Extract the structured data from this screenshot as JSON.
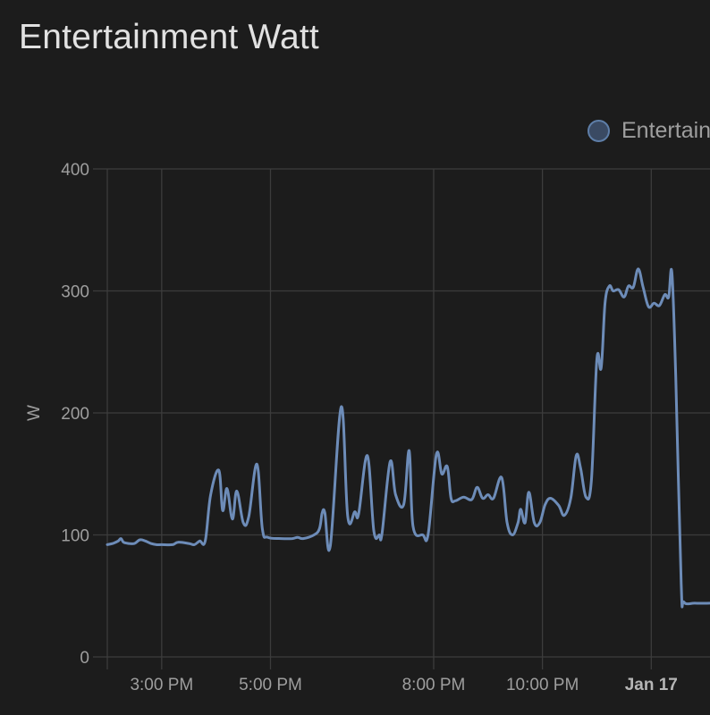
{
  "card": {
    "title": "Entertainment Watt"
  },
  "chart_data": {
    "type": "line",
    "title": "Entertainment Watt",
    "ylabel": "W",
    "ylim": [
      0,
      400
    ],
    "yticks": [
      0,
      100,
      200,
      300,
      400
    ],
    "xlim_hours": [
      14.0,
      25.08
    ],
    "xticks": [
      {
        "label": "3:00 PM",
        "hour": 15,
        "bold": false
      },
      {
        "label": "5:00 PM",
        "hour": 17,
        "bold": false
      },
      {
        "label": "8:00 PM",
        "hour": 20,
        "bold": false
      },
      {
        "label": "10:00 PM",
        "hour": 22,
        "bold": false
      },
      {
        "label": "Jan 17",
        "hour": 24,
        "bold": true
      }
    ],
    "legend_position": "top-right",
    "grid": true,
    "series": [
      {
        "name": "Entertain",
        "color": "#6d8cb8",
        "points": [
          [
            14.0,
            92
          ],
          [
            14.1,
            93
          ],
          [
            14.2,
            95
          ],
          [
            14.25,
            97
          ],
          [
            14.3,
            94
          ],
          [
            14.4,
            93
          ],
          [
            14.5,
            93
          ],
          [
            14.6,
            96
          ],
          [
            14.7,
            95
          ],
          [
            14.8,
            93
          ],
          [
            14.9,
            92
          ],
          [
            15.0,
            92
          ],
          [
            15.2,
            92
          ],
          [
            15.3,
            94
          ],
          [
            15.5,
            93
          ],
          [
            15.6,
            92
          ],
          [
            15.7,
            95
          ],
          [
            15.8,
            95
          ],
          [
            15.9,
            133
          ],
          [
            16.05,
            153
          ],
          [
            16.12,
            120
          ],
          [
            16.2,
            138
          ],
          [
            16.3,
            113
          ],
          [
            16.38,
            136
          ],
          [
            16.5,
            110
          ],
          [
            16.6,
            115
          ],
          [
            16.75,
            158
          ],
          [
            16.85,
            105
          ],
          [
            16.95,
            98
          ],
          [
            17.2,
            97
          ],
          [
            17.4,
            97
          ],
          [
            17.5,
            98
          ],
          [
            17.6,
            97
          ],
          [
            17.8,
            100
          ],
          [
            17.9,
            105
          ],
          [
            17.95,
            118
          ],
          [
            18.0,
            118
          ],
          [
            18.1,
            91
          ],
          [
            18.3,
            205
          ],
          [
            18.42,
            115
          ],
          [
            18.55,
            119
          ],
          [
            18.62,
            117
          ],
          [
            18.78,
            165
          ],
          [
            18.9,
            103
          ],
          [
            19.0,
            100
          ],
          [
            19.05,
            101
          ],
          [
            19.2,
            160
          ],
          [
            19.3,
            133
          ],
          [
            19.45,
            125
          ],
          [
            19.55,
            169
          ],
          [
            19.62,
            107
          ],
          [
            19.8,
            100
          ],
          [
            19.9,
            101
          ],
          [
            20.05,
            166
          ],
          [
            20.15,
            150
          ],
          [
            20.25,
            156
          ],
          [
            20.32,
            130
          ],
          [
            20.4,
            128
          ],
          [
            20.55,
            131
          ],
          [
            20.7,
            129
          ],
          [
            20.8,
            139
          ],
          [
            20.9,
            130
          ],
          [
            21.0,
            133
          ],
          [
            21.1,
            130
          ],
          [
            21.25,
            147
          ],
          [
            21.35,
            110
          ],
          [
            21.45,
            100
          ],
          [
            21.55,
            110
          ],
          [
            21.6,
            121
          ],
          [
            21.68,
            110
          ],
          [
            21.75,
            135
          ],
          [
            21.85,
            110
          ],
          [
            21.95,
            110
          ],
          [
            22.05,
            125
          ],
          [
            22.15,
            130
          ],
          [
            22.3,
            124
          ],
          [
            22.4,
            116
          ],
          [
            22.52,
            130
          ],
          [
            22.62,
            165
          ],
          [
            22.7,
            155
          ],
          [
            22.8,
            131
          ],
          [
            22.9,
            145
          ],
          [
            23.0,
            244
          ],
          [
            23.08,
            237
          ],
          [
            23.15,
            290
          ],
          [
            23.23,
            304
          ],
          [
            23.3,
            300
          ],
          [
            23.4,
            301
          ],
          [
            23.5,
            295
          ],
          [
            23.58,
            304
          ],
          [
            23.67,
            303
          ],
          [
            23.76,
            318
          ],
          [
            23.85,
            303
          ],
          [
            23.95,
            287
          ],
          [
            24.05,
            290
          ],
          [
            24.15,
            288
          ],
          [
            24.25,
            297
          ],
          [
            24.32,
            295
          ],
          [
            24.38,
            315
          ],
          [
            24.45,
            230
          ],
          [
            24.55,
            60
          ],
          [
            24.6,
            45
          ],
          [
            24.8,
            44
          ],
          [
            25.08,
            44
          ]
        ]
      }
    ]
  }
}
